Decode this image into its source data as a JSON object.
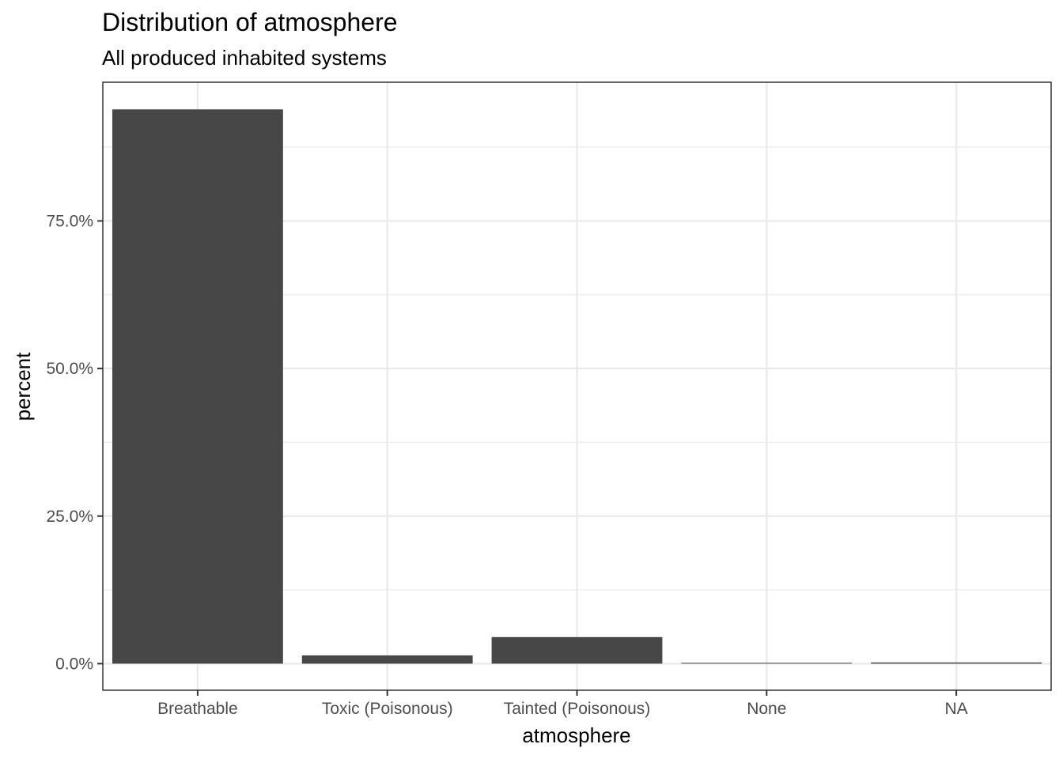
{
  "chart_data": {
    "type": "bar",
    "title": "Distribution of atmosphere",
    "subtitle": "All produced inhabited systems",
    "xlabel": "atmosphere",
    "ylabel": "percent",
    "categories": [
      "Breathable",
      "Toxic (Poisonous)",
      "Tainted (Poisonous)",
      "None",
      "NA"
    ],
    "values": [
      93.9,
      1.4,
      4.5,
      0.1,
      0.2
    ],
    "ylim": [
      -4.5,
      98.5
    ],
    "yticks": [
      0,
      25,
      50,
      75
    ],
    "ytick_labels": [
      "0.0%",
      "25.0%",
      "50.0%",
      "75.0%"
    ],
    "grid": true,
    "bar_color": "#474747",
    "grid_color": "#ebebeb",
    "panel_border_color": "#333333"
  }
}
